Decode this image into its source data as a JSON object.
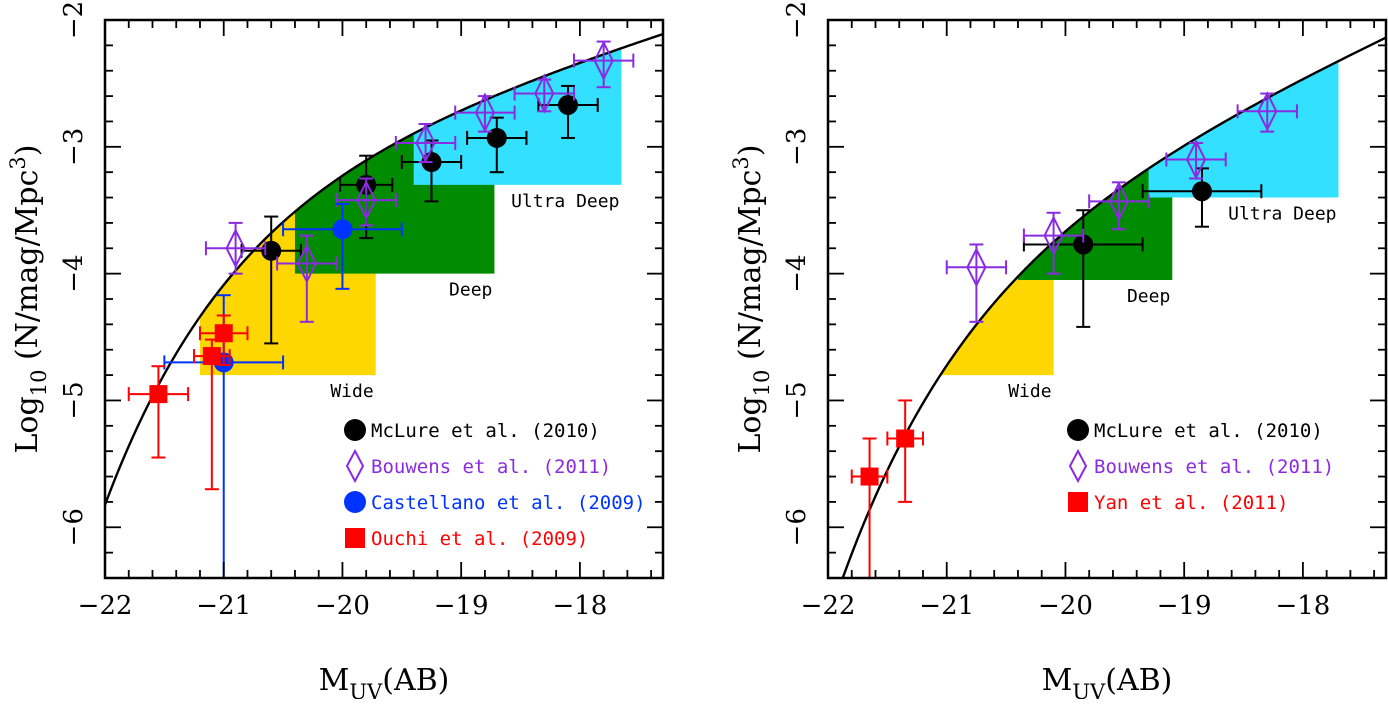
{
  "chart_data": [
    {
      "type": "scatter",
      "panel": "left",
      "xlabel_main": "M",
      "xlabel_sub": "UV",
      "xlabel_tail": "(AB)",
      "ylabel_main": "Log",
      "ylabel_sub": "10",
      "ylabel_tail": " (N/mag/Mpc",
      "ylabel_sup": "3",
      "ylabel_close": ")",
      "xlim": [
        -22,
        -17.3
      ],
      "ylim": [
        -6.4,
        -2
      ],
      "xticks": [
        -22,
        -21,
        -20,
        -19,
        -18
      ],
      "xtick_labels": [
        "−22",
        "−21",
        "−20",
        "−19",
        "−18"
      ],
      "yticks": [
        -6,
        -5,
        -4,
        -3,
        -2
      ],
      "ytick_labels": [
        "−6",
        "−5",
        "−4",
        "−3",
        "−2"
      ],
      "curve": {
        "mstar": -20.14,
        "alpha": -1.71,
        "logphi": -2.85
      },
      "regions": [
        {
          "name": "Wide",
          "label": "Wide",
          "color": "#ffd700",
          "x0": -21.2,
          "x1": -19.72,
          "ylevel": -4.8
        },
        {
          "name": "Deep",
          "label": "Deep",
          "color": "#008c00",
          "x0": -20.4,
          "x1": -18.72,
          "ylevel": -4.0
        },
        {
          "name": "Ultra Deep",
          "label": "Ultra Deep",
          "color": "#33e0ff",
          "x0": -19.4,
          "x1": -17.65,
          "ylevel": -3.3
        }
      ],
      "series": [
        {
          "name": "McLure et al. (2010)",
          "color": "#000000",
          "marker": "circle",
          "points": [
            {
              "x": -20.6,
              "y": -3.82,
              "xerr": 0.25,
              "ylo": -4.55,
              "yhi": -3.55
            },
            {
              "x": -19.8,
              "y": -3.3,
              "xerr": 0.22,
              "ylo": -3.72,
              "yhi": -3.07
            },
            {
              "x": -19.25,
              "y": -3.12,
              "xerr": 0.25,
              "ylo": -3.43,
              "yhi": -2.95
            },
            {
              "x": -18.7,
              "y": -2.93,
              "xerr": 0.25,
              "ylo": -3.2,
              "yhi": -2.77
            },
            {
              "x": -18.1,
              "y": -2.67,
              "xerr": 0.25,
              "ylo": -2.93,
              "yhi": -2.52
            }
          ]
        },
        {
          "name": "Bouwens et al. (2011)",
          "color": "#8a2be2",
          "marker": "diamond",
          "points": [
            {
              "x": -20.9,
              "y": -3.8,
              "xerr": 0.25,
              "ylo": -4.0,
              "yhi": -3.6
            },
            {
              "x": -20.3,
              "y": -3.92,
              "xerr": 0.25,
              "ylo": -4.38,
              "yhi": -3.7
            },
            {
              "x": -19.8,
              "y": -3.42,
              "xerr": 0.25,
              "ylo": -3.62,
              "yhi": -3.25
            },
            {
              "x": -19.3,
              "y": -2.97,
              "xerr": 0.25,
              "ylo": -3.12,
              "yhi": -2.82
            },
            {
              "x": -18.8,
              "y": -2.73,
              "xerr": 0.25,
              "ylo": -2.88,
              "yhi": -2.6
            },
            {
              "x": -18.3,
              "y": -2.58,
              "xerr": 0.25,
              "ylo": -2.72,
              "yhi": -2.47
            },
            {
              "x": -17.8,
              "y": -2.32,
              "xerr": 0.25,
              "ylo": -2.53,
              "yhi": -2.17
            }
          ]
        },
        {
          "name": "Castellano et al. (2009)",
          "color": "#0033ff",
          "marker": "circle",
          "points": [
            {
              "x": -21.0,
              "y": -4.7,
              "xerr": 0.5,
              "ylo": -6.4,
              "yhi": -4.17
            },
            {
              "x": -20.0,
              "y": -3.65,
              "xerr": 0.5,
              "ylo": -4.12,
              "yhi": -3.45
            }
          ]
        },
        {
          "name": "Ouchi et al. (2009)",
          "color": "#ff0000",
          "marker": "square",
          "points": [
            {
              "x": -21.55,
              "y": -4.95,
              "xerr": 0.25,
              "ylo": -5.45,
              "yhi": -4.73
            },
            {
              "x": -21.1,
              "y": -4.65,
              "xerr": 0.15,
              "ylo": -5.7,
              "yhi": -4.52
            },
            {
              "x": -21.0,
              "y": -4.47,
              "xerr": 0.2,
              "ylo": -4.72,
              "yhi": -4.33
            }
          ]
        }
      ]
    },
    {
      "type": "scatter",
      "panel": "right",
      "xlabel_main": "M",
      "xlabel_sub": "UV",
      "xlabel_tail": "(AB)",
      "ylabel_main": "Log",
      "ylabel_sub": "10",
      "ylabel_tail": " (N/mag/Mpc",
      "ylabel_sup": "3",
      "ylabel_close": ")",
      "xlim": [
        -22,
        -17.3
      ],
      "ylim": [
        -6.4,
        -2
      ],
      "xticks": [
        -22,
        -21,
        -20,
        -19,
        -18
      ],
      "xtick_labels": [
        "−22",
        "−21",
        "−20",
        "−19",
        "−18"
      ],
      "yticks": [
        -6,
        -5,
        -4,
        -3,
        -2
      ],
      "ytick_labels": [
        "−6",
        "−5",
        "−4",
        "−3",
        "−2"
      ],
      "curve": {
        "mstar": -20.04,
        "alpha": -2.06,
        "logphi": -3.23
      },
      "regions": [
        {
          "name": "Wide",
          "label": "Wide",
          "color": "#ffd700",
          "x0": -21.1,
          "x1": -20.1,
          "ylevel": -4.8
        },
        {
          "name": "Deep",
          "label": "Deep",
          "color": "#008c00",
          "x0": -20.4,
          "x1": -19.1,
          "ylevel": -4.05
        },
        {
          "name": "Ultra Deep",
          "label": "Ultra Deep",
          "color": "#33e0ff",
          "x0": -19.3,
          "x1": -17.7,
          "ylevel": -3.4
        }
      ],
      "series": [
        {
          "name": "McLure et al. (2010)",
          "color": "#000000",
          "marker": "circle",
          "points": [
            {
              "x": -19.85,
              "y": -3.77,
              "xerr": 0.5,
              "ylo": -4.42,
              "yhi": -3.5
            },
            {
              "x": -18.85,
              "y": -3.35,
              "xerr": 0.5,
              "ylo": -3.63,
              "yhi": -3.17
            }
          ]
        },
        {
          "name": "Bouwens et al. (2011)",
          "color": "#8a2be2",
          "marker": "diamond",
          "points": [
            {
              "x": -20.75,
              "y": -3.95,
              "xerr": 0.25,
              "ylo": -4.38,
              "yhi": -3.77
            },
            {
              "x": -20.1,
              "y": -3.7,
              "xerr": 0.25,
              "ylo": -4.0,
              "yhi": -3.52
            },
            {
              "x": -19.55,
              "y": -3.43,
              "xerr": 0.25,
              "ylo": -3.65,
              "yhi": -3.28
            },
            {
              "x": -18.9,
              "y": -3.1,
              "xerr": 0.25,
              "ylo": -3.25,
              "yhi": -2.97
            },
            {
              "x": -18.3,
              "y": -2.72,
              "xerr": 0.25,
              "ylo": -2.88,
              "yhi": -2.58
            }
          ]
        },
        {
          "name": "Yan et al. (2011)",
          "color": "#ff0000",
          "marker": "square",
          "points": [
            {
              "x": -21.65,
              "y": -5.6,
              "xerr": 0.15,
              "ylo": -6.4,
              "yhi": -5.3
            },
            {
              "x": -21.35,
              "y": -5.3,
              "xerr": 0.15,
              "ylo": -5.8,
              "yhi": -5.0
            }
          ]
        }
      ]
    }
  ]
}
